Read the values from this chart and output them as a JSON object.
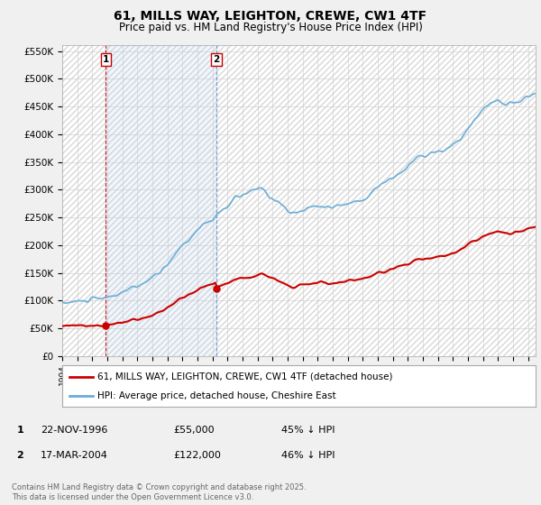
{
  "title": "61, MILLS WAY, LEIGHTON, CREWE, CW1 4TF",
  "subtitle": "Price paid vs. HM Land Registry's House Price Index (HPI)",
  "bg_color": "#f0f0f0",
  "plot_bg_color": "#ffffff",
  "grid_color": "#cccccc",
  "hpi_color": "#6baed6",
  "hpi_fill_color": "#ddeeff",
  "price_color": "#cc0000",
  "dashed_color_red": "#cc0000",
  "dashed_color_blue": "#6699cc",
  "ylim": [
    0,
    560000
  ],
  "yticks": [
    0,
    50000,
    100000,
    150000,
    200000,
    250000,
    300000,
    350000,
    400000,
    450000,
    500000,
    550000
  ],
  "ytick_labels": [
    "£0",
    "£50K",
    "£100K",
    "£150K",
    "£200K",
    "£250K",
    "£300K",
    "£350K",
    "£400K",
    "£450K",
    "£500K",
    "£550K"
  ],
  "xmin": 1994,
  "xmax": 2025.5,
  "legend_label_red": "61, MILLS WAY, LEIGHTON, CREWE, CW1 4TF (detached house)",
  "legend_label_blue": "HPI: Average price, detached house, Cheshire East",
  "sale1_date": "22-NOV-1996",
  "sale1_price": "£55,000",
  "sale1_hpi": "45% ↓ HPI",
  "sale1_x": 1996.9,
  "sale1_y": 55000,
  "sale2_date": "17-MAR-2004",
  "sale2_price": "£122,000",
  "sale2_hpi": "46% ↓ HPI",
  "sale2_x": 2004.25,
  "sale2_y": 122000,
  "copyright": "Contains HM Land Registry data © Crown copyright and database right 2025.\nThis data is licensed under the Open Government Licence v3.0."
}
